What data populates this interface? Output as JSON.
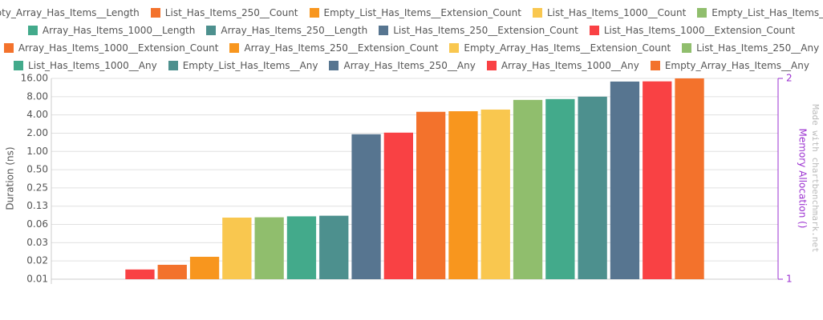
{
  "chart_data": {
    "type": "bar",
    "log_scale": true,
    "grid": true,
    "legend": "top",
    "categories": [
      null
    ],
    "ylabel": "Duration (ns)",
    "y2label": "Memory Allocation ()",
    "y2_color": "#9b30d0",
    "watermark": "Made with chartbenchmark.net",
    "ylim": [
      0.0078125,
      16
    ],
    "yticks": [
      {
        "value": 0.0078125,
        "label": "0.01"
      },
      {
        "value": 0.015625,
        "label": "0.02"
      },
      {
        "value": 0.03125,
        "label": "0.03"
      },
      {
        "value": 0.0625,
        "label": "0.06"
      },
      {
        "value": 0.125,
        "label": "0.13"
      },
      0.25,
      {
        "value": 0.5,
        "label": "0.50"
      },
      {
        "value": 1,
        "label": "1.00"
      },
      {
        "value": 2,
        "label": "2.00"
      },
      {
        "value": 4,
        "label": "4.00"
      },
      {
        "value": 8,
        "label": "8.00"
      },
      {
        "value": 16,
        "label": "16.00"
      }
    ],
    "y2lim": [
      1,
      2
    ],
    "y2ticks": [
      1,
      2
    ],
    "series": [
      {
        "name": "Empty_Array_Has_Items__Length",
        "color": "#f94144",
        "values": [
          0.0113
        ]
      },
      {
        "name": "List_Has_Items_250__Count",
        "color": "#f3722c",
        "values": [
          0.0135
        ]
      },
      {
        "name": "Empty_List_Has_Items__Extension_Count",
        "color": "#f8961e",
        "values": [
          0.0183
        ]
      },
      {
        "name": "List_Has_Items_1000__Count",
        "color": "#f9c74f",
        "values": [
          0.081
        ]
      },
      {
        "name": "Empty_List_Has_Items__Count",
        "color": "#90be6d",
        "values": [
          0.082
        ]
      },
      {
        "name": "Array_Has_Items_1000__Length",
        "color": "#43aa8b",
        "values": [
          0.085
        ]
      },
      {
        "name": "Array_Has_Items_250__Length",
        "color": "#4d908e",
        "values": [
          0.087
        ]
      },
      {
        "name": "List_Has_Items_250__Extension_Count",
        "color": "#577590",
        "values": [
          1.92
        ]
      },
      {
        "name": "List_Has_Items_1000__Extension_Count",
        "color": "#f94144",
        "values": [
          2.04
        ]
      },
      {
        "name": "Array_Has_Items_1000__Extension_Count",
        "color": "#f3722c",
        "values": [
          4.5
        ]
      },
      {
        "name": "Array_Has_Items_250__Extension_Count",
        "color": "#f8961e",
        "values": [
          4.6
        ]
      },
      {
        "name": "Empty_Array_Has_Items__Extension_Count",
        "color": "#f9c74f",
        "values": [
          4.9
        ]
      },
      {
        "name": "List_Has_Items_250__Any",
        "color": "#90be6d",
        "values": [
          7.07
        ]
      },
      {
        "name": "List_Has_Items_1000__Any",
        "color": "#43aa8b",
        "values": [
          7.3
        ]
      },
      {
        "name": "Empty_List_Has_Items__Any",
        "color": "#4d908e",
        "values": [
          8.0
        ]
      },
      {
        "name": "Array_Has_Items_250__Any",
        "color": "#577590",
        "values": [
          14.2
        ]
      },
      {
        "name": "Array_Has_Items_1000__Any",
        "color": "#f94144",
        "values": [
          14.3
        ]
      },
      {
        "name": "Empty_Array_Has_Items__Any",
        "color": "#f3722c",
        "values": [
          16
        ]
      }
    ]
  }
}
